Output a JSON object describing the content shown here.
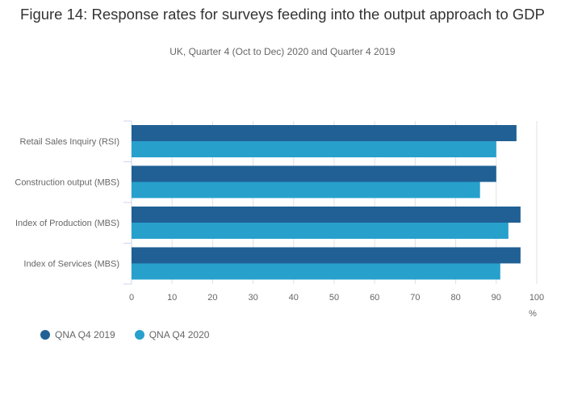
{
  "chart_data": {
    "type": "bar",
    "orientation": "horizontal",
    "title": "Figure 14: Response rates for surveys feeding into the output approach to GDP",
    "subtitle": "UK, Quarter 4 (Oct to Dec) 2020 and Quarter 4 2019",
    "categories": [
      "Retail Sales Inquiry (RSI)",
      "Construction output (MBS)",
      "Index of Production (MBS)",
      "Index of Services (MBS)"
    ],
    "series": [
      {
        "name": "QNA Q4 2019",
        "color": "#206095",
        "values": [
          95,
          90,
          96,
          96
        ]
      },
      {
        "name": "QNA Q4 2020",
        "color": "#27a0cc",
        "values": [
          90,
          86,
          93,
          91
        ]
      }
    ],
    "xlabel": "%",
    "xlim": [
      0,
      100
    ],
    "xticks": [
      "0",
      "10",
      "20",
      "30",
      "40",
      "50",
      "60",
      "70",
      "80",
      "90",
      "100"
    ],
    "grid": true,
    "legend_position": "bottom-left"
  }
}
